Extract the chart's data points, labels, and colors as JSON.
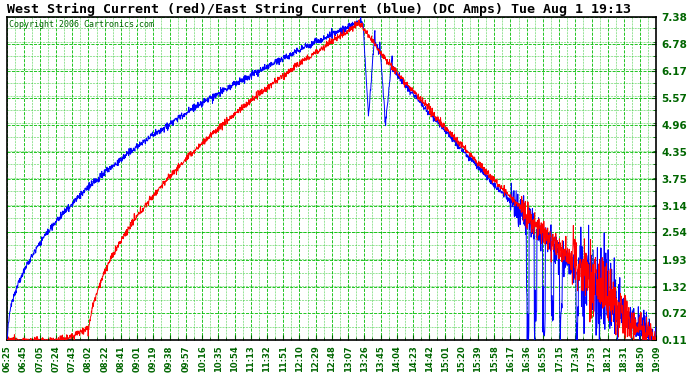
{
  "title": "West String Current (red)/East String Current (blue) (DC Amps) Tue Aug 1 19:13",
  "copyright": "Copyright 2006 Cartronics.com",
  "bg_color": "#ffffff",
  "plot_bg_color": "#ffffff",
  "grid_color": "#00bb00",
  "line_color_west": "#ff0000",
  "line_color_east": "#0000ff",
  "yticks": [
    0.11,
    0.72,
    1.32,
    1.93,
    2.54,
    3.14,
    3.75,
    4.35,
    4.96,
    5.57,
    6.17,
    6.78,
    7.38
  ],
  "xtick_labels": [
    "06:25",
    "06:45",
    "07:05",
    "07:24",
    "07:43",
    "08:02",
    "08:22",
    "08:41",
    "09:01",
    "09:19",
    "09:38",
    "09:57",
    "10:16",
    "10:35",
    "10:54",
    "11:13",
    "11:32",
    "11:51",
    "12:10",
    "12:29",
    "12:48",
    "13:07",
    "13:26",
    "13:45",
    "14:04",
    "14:23",
    "14:42",
    "15:01",
    "15:20",
    "15:39",
    "15:58",
    "16:17",
    "16:36",
    "16:55",
    "17:15",
    "17:34",
    "17:53",
    "18:12",
    "18:31",
    "18:50",
    "19:09"
  ],
  "ymin": 0.11,
  "ymax": 7.38,
  "title_color": "#000000",
  "tick_color": "#006600",
  "border_color": "#000000"
}
